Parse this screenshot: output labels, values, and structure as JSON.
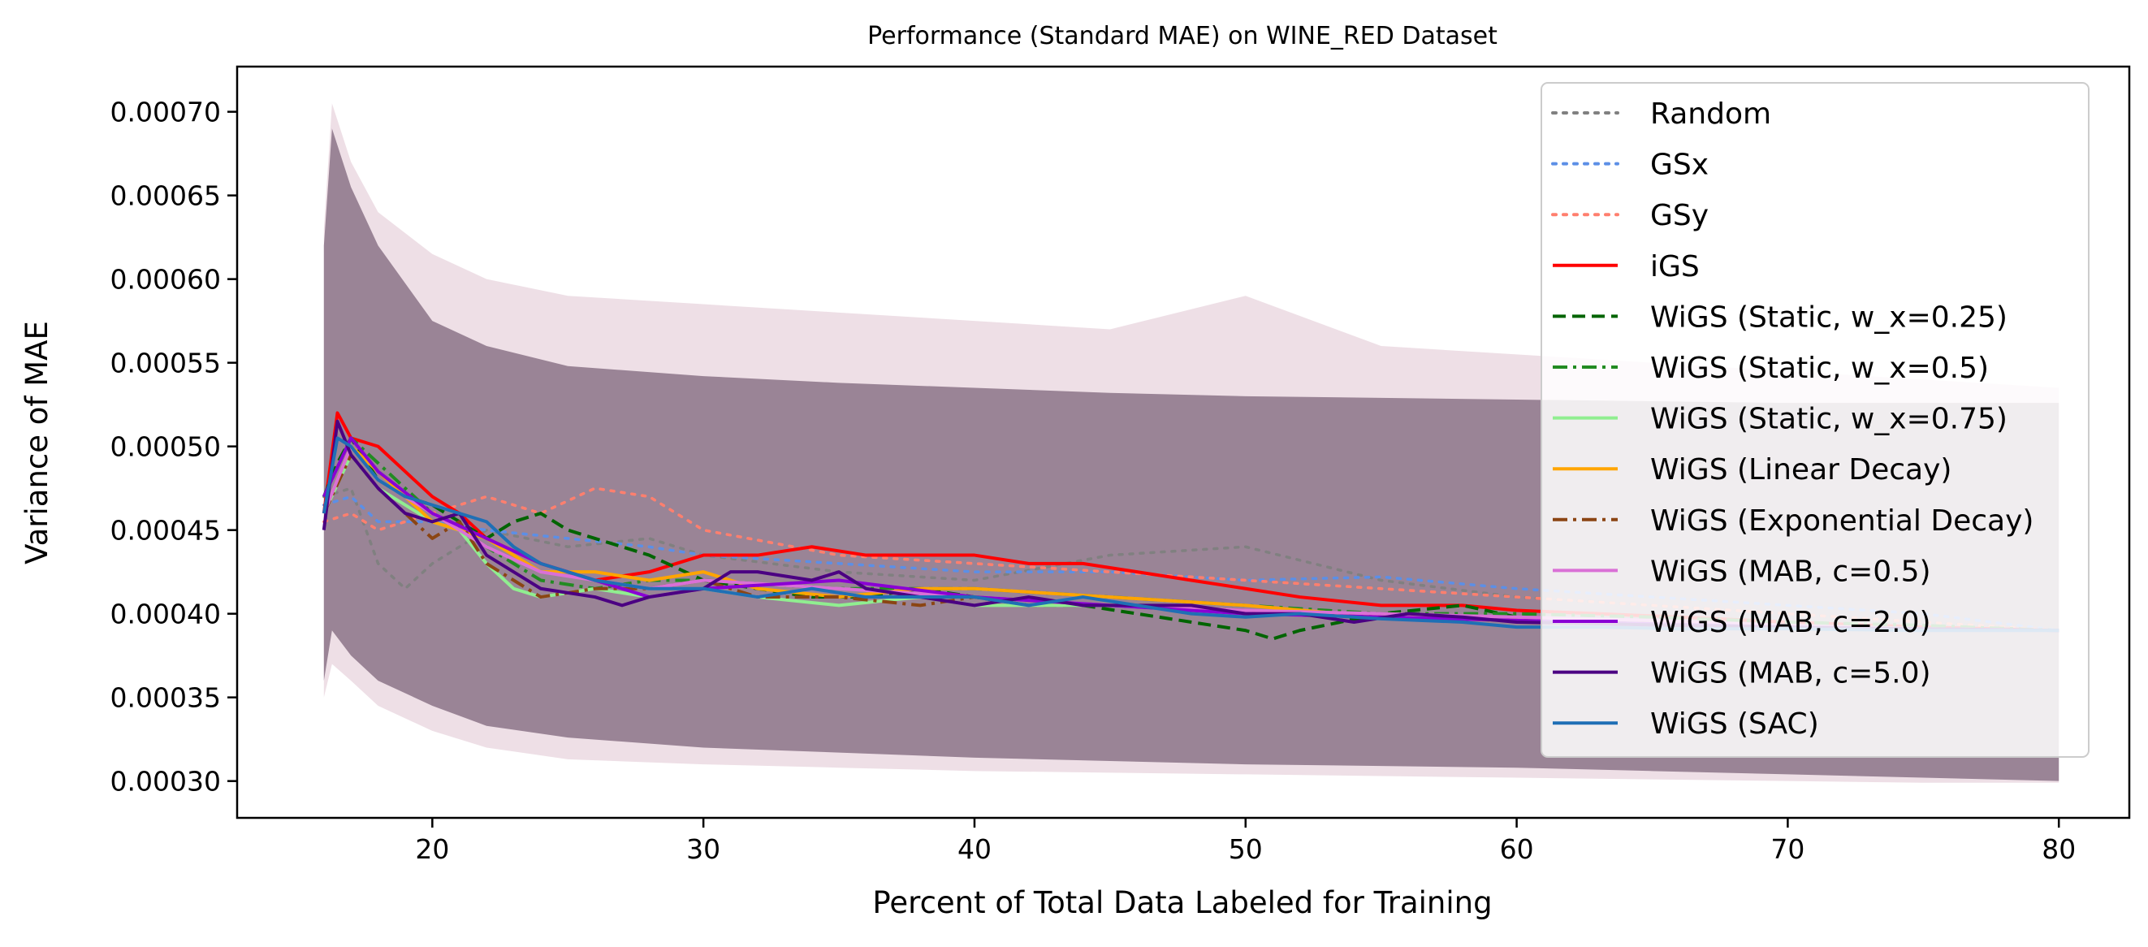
{
  "chart_data": {
    "type": "line",
    "title": "Performance (Standard MAE) on WINE_RED Dataset",
    "xlabel": "Percent of Total Data Labeled for Training",
    "ylabel": "Variance of MAE",
    "xlim": [
      12.8,
      82.6
    ],
    "ylim": [
      0.000278,
      0.000727
    ],
    "xticks": [
      20,
      30,
      40,
      50,
      60,
      70,
      80
    ],
    "yticks": [
      0.0003,
      0.00035,
      0.0004,
      0.00045,
      0.0005,
      0.00055,
      0.0006,
      0.00065,
      0.0007
    ],
    "ytick_labels": [
      "0.00030",
      "0.00035",
      "0.00040",
      "0.00045",
      "0.00050",
      "0.00055",
      "0.00060",
      "0.00065",
      "0.00070"
    ],
    "grid": false,
    "legend_position": "upper-right",
    "shaded_band": {
      "description_of_color": "shared variance band drawn in muted purple",
      "color": "#9a8496",
      "x": [
        16,
        16.3,
        17,
        18,
        20,
        22,
        25,
        30,
        35,
        40,
        45,
        50,
        55,
        60,
        65,
        70,
        75,
        80
      ],
      "upper": [
        0.00062,
        0.00069,
        0.000655,
        0.00062,
        0.000575,
        0.00056,
        0.000548,
        0.000542,
        0.000538,
        0.000535,
        0.000532,
        0.00053,
        0.000529,
        0.000528,
        0.000527,
        0.000526,
        0.000526,
        0.000526
      ],
      "lower": [
        0.00036,
        0.00039,
        0.000375,
        0.00036,
        0.000345,
        0.000333,
        0.000326,
        0.00032,
        0.000317,
        0.000314,
        0.000312,
        0.00031,
        0.000309,
        0.000308,
        0.000306,
        0.000304,
        0.000302,
        0.0003
      ],
      "outer_upper": [
        0.00063,
        0.000705,
        0.00067,
        0.00064,
        0.000615,
        0.0006,
        0.00059,
        0.000585,
        0.00058,
        0.000575,
        0.00057,
        0.00059,
        0.00056,
        0.000555,
        0.00055,
        0.000545,
        0.00054,
        0.000535
      ],
      "outer_lower": [
        0.00035,
        0.00037,
        0.00036,
        0.000345,
        0.00033,
        0.00032,
        0.000313,
        0.00031,
        0.000308,
        0.000306,
        0.000305,
        0.000304,
        0.000303,
        0.000302,
        0.000301,
        0.0003,
        0.000299,
        0.000299
      ]
    },
    "series": [
      {
        "name": "Random",
        "color": "#808080",
        "dash": "dotted",
        "x": [
          16,
          17,
          18,
          19,
          20,
          22,
          25,
          28,
          30,
          35,
          40,
          45,
          50,
          55,
          60,
          65,
          70,
          75,
          80
        ],
        "values": [
          0.00047,
          0.000475,
          0.00043,
          0.000415,
          0.00043,
          0.00045,
          0.00044,
          0.000445,
          0.000435,
          0.000425,
          0.00042,
          0.000435,
          0.00044,
          0.00042,
          0.00041,
          0.000405,
          0.0004,
          0.000395,
          0.00039
        ]
      },
      {
        "name": "GSx",
        "color": "#5c8fe6",
        "dash": "dotted",
        "x": [
          16,
          17,
          18,
          20,
          22,
          25,
          28,
          30,
          35,
          40,
          45,
          50,
          55,
          60,
          65,
          70,
          75,
          80
        ],
        "values": [
          0.000465,
          0.00047,
          0.000455,
          0.000455,
          0.00045,
          0.000445,
          0.00044,
          0.000435,
          0.00043,
          0.000425,
          0.000425,
          0.00042,
          0.000422,
          0.000415,
          0.00041,
          0.000405,
          0.0004,
          0.00039
        ]
      },
      {
        "name": "GSy",
        "color": "#ff7f6e",
        "dash": "dotted",
        "x": [
          16,
          17,
          18,
          20,
          22,
          24,
          26,
          28,
          30,
          35,
          40,
          45,
          50,
          55,
          60,
          65,
          70,
          75,
          80
        ],
        "values": [
          0.000455,
          0.00046,
          0.00045,
          0.00046,
          0.00047,
          0.00046,
          0.000475,
          0.00047,
          0.00045,
          0.000435,
          0.00043,
          0.000425,
          0.00042,
          0.000415,
          0.00041,
          0.000405,
          0.0004,
          0.000395,
          0.00039
        ]
      },
      {
        "name": "iGS",
        "color": "#ff0000",
        "dash": "solid",
        "x": [
          16,
          16.5,
          17,
          18,
          19,
          20,
          21,
          22,
          24,
          26,
          28,
          30,
          32,
          34,
          36,
          38,
          40,
          42,
          44,
          46,
          48,
          50,
          52,
          55,
          58,
          60,
          63,
          66,
          70,
          75,
          80
        ],
        "values": [
          0.00046,
          0.00052,
          0.000505,
          0.0005,
          0.000485,
          0.00047,
          0.00046,
          0.000445,
          0.00043,
          0.00042,
          0.000425,
          0.000435,
          0.000435,
          0.00044,
          0.000435,
          0.000435,
          0.000435,
          0.00043,
          0.00043,
          0.000425,
          0.00042,
          0.000415,
          0.00041,
          0.000405,
          0.000405,
          0.000402,
          0.0004,
          0.000398,
          0.000395,
          0.000392,
          0.00039
        ]
      },
      {
        "name": "WiGS (Static, w_x=0.25)",
        "color": "#006400",
        "dash": "dashed",
        "x": [
          16,
          16.5,
          17,
          18,
          19,
          20,
          21,
          22,
          23,
          24,
          25,
          26,
          28,
          30,
          32,
          34,
          36,
          38,
          40,
          42,
          44,
          46,
          48,
          50,
          51,
          52,
          55,
          58,
          60,
          63,
          66,
          70,
          75,
          80
        ],
        "values": [
          0.00047,
          0.00049,
          0.000505,
          0.00048,
          0.00047,
          0.000465,
          0.000455,
          0.000445,
          0.000455,
          0.00046,
          0.00045,
          0.000445,
          0.000435,
          0.00042,
          0.000415,
          0.00041,
          0.00041,
          0.000415,
          0.00041,
          0.000405,
          0.000405,
          0.0004,
          0.000395,
          0.00039,
          0.000385,
          0.00039,
          0.0004,
          0.000405,
          0.000398,
          0.000396,
          0.000394,
          0.000393,
          0.000391,
          0.00039
        ]
      },
      {
        "name": "WiGS (Static, w_x=0.5)",
        "color": "#228b22",
        "dash": "dashdot",
        "x": [
          16,
          17,
          18,
          20,
          22,
          24,
          26,
          28,
          30,
          35,
          40,
          45,
          50,
          55,
          60,
          65,
          70,
          75,
          80
        ],
        "values": [
          0.00047,
          0.000505,
          0.00049,
          0.00046,
          0.00044,
          0.00042,
          0.000415,
          0.00042,
          0.00042,
          0.000415,
          0.000415,
          0.00041,
          0.000405,
          0.0004,
          0.0004,
          0.000398,
          0.000395,
          0.000393,
          0.00039
        ]
      },
      {
        "name": "WiGS (Static, w_x=0.75)",
        "color": "#90ee90",
        "dash": "solid",
        "x": [
          16,
          17,
          18,
          20,
          21,
          22,
          23,
          24,
          26,
          28,
          30,
          32,
          35,
          38,
          40,
          45,
          50,
          55,
          60,
          65,
          70,
          75,
          80
        ],
        "values": [
          0.00046,
          0.000495,
          0.000475,
          0.000455,
          0.00045,
          0.00043,
          0.000415,
          0.00041,
          0.000415,
          0.00041,
          0.000415,
          0.00041,
          0.000405,
          0.00041,
          0.000405,
          0.000405,
          0.0004,
          0.000398,
          0.000397,
          0.000395,
          0.000393,
          0.000391,
          0.00039
        ]
      },
      {
        "name": "WiGS (Linear Decay)",
        "color": "#ffa500",
        "dash": "solid",
        "x": [
          16,
          17,
          18,
          20,
          22,
          24,
          26,
          28,
          30,
          32,
          35,
          38,
          40,
          45,
          50,
          55,
          60,
          65,
          70,
          75,
          80
        ],
        "values": [
          0.00046,
          0.0005,
          0.000485,
          0.000455,
          0.000445,
          0.000425,
          0.000425,
          0.00042,
          0.000425,
          0.000415,
          0.00041,
          0.000415,
          0.000415,
          0.00041,
          0.000405,
          0.000398,
          0.000396,
          0.000394,
          0.000392,
          0.000391,
          0.00039
        ]
      },
      {
        "name": "WiGS (Exponential Decay)",
        "color": "#8b4513",
        "dash": "dashdot",
        "x": [
          16,
          17,
          18,
          20,
          21,
          22,
          24,
          26,
          28,
          30,
          32,
          35,
          38,
          40,
          45,
          50,
          55,
          60,
          65,
          70,
          75,
          80
        ],
        "values": [
          0.00046,
          0.000495,
          0.000475,
          0.000445,
          0.000455,
          0.00043,
          0.00041,
          0.000415,
          0.000415,
          0.00042,
          0.00041,
          0.00041,
          0.000405,
          0.00041,
          0.000405,
          0.000402,
          0.000398,
          0.000396,
          0.000394,
          0.000392,
          0.000391,
          0.00039
        ]
      },
      {
        "name": "WiGS (MAB, c=0.5)",
        "color": "#da70d6",
        "dash": "solid",
        "x": [
          16,
          17,
          18,
          20,
          22,
          24,
          26,
          28,
          30,
          35,
          40,
          45,
          50,
          55,
          60,
          65,
          70,
          75,
          80
        ],
        "values": [
          0.00046,
          0.0005,
          0.00048,
          0.00046,
          0.00044,
          0.000425,
          0.00042,
          0.000415,
          0.00042,
          0.000415,
          0.00041,
          0.000405,
          0.000402,
          0.0004,
          0.000398,
          0.000396,
          0.000393,
          0.000391,
          0.00039
        ]
      },
      {
        "name": "WiGS (MAB, c=2.0)",
        "color": "#8a00d4",
        "dash": "solid",
        "x": [
          16,
          17,
          18,
          20,
          22,
          24,
          26,
          28,
          30,
          35,
          40,
          45,
          50,
          55,
          60,
          65,
          70,
          75,
          80
        ],
        "values": [
          0.00047,
          0.000505,
          0.000485,
          0.00046,
          0.000445,
          0.00043,
          0.00042,
          0.00041,
          0.000415,
          0.00042,
          0.00041,
          0.000405,
          0.0004,
          0.000398,
          0.000396,
          0.000394,
          0.000392,
          0.000391,
          0.00039
        ]
      },
      {
        "name": "WiGS (MAB, c=5.0)",
        "color": "#4b0082",
        "dash": "solid",
        "x": [
          16,
          16.5,
          17,
          18,
          19,
          20,
          21,
          22,
          24,
          26,
          27,
          28,
          30,
          31,
          32,
          34,
          35,
          36,
          38,
          40,
          42,
          44,
          46,
          48,
          50,
          52,
          54,
          56,
          58,
          60,
          63,
          66,
          70,
          75,
          80
        ],
        "values": [
          0.00045,
          0.000515,
          0.000495,
          0.000475,
          0.00046,
          0.000455,
          0.00046,
          0.000435,
          0.000415,
          0.00041,
          0.000405,
          0.00041,
          0.000415,
          0.000425,
          0.000425,
          0.00042,
          0.000425,
          0.000415,
          0.00041,
          0.000405,
          0.00041,
          0.000405,
          0.000405,
          0.000405,
          0.0004,
          0.0004,
          0.000395,
          0.0004,
          0.000398,
          0.000395,
          0.000394,
          0.000393,
          0.000392,
          0.000391,
          0.00039
        ]
      },
      {
        "name": "WiGS (SAC)",
        "color": "#1f6fb5",
        "dash": "solid",
        "x": [
          16,
          16.5,
          17,
          18,
          19,
          20,
          21,
          22,
          23,
          24,
          26,
          28,
          30,
          32,
          34,
          36,
          38,
          40,
          42,
          44,
          46,
          48,
          50,
          52,
          55,
          58,
          60,
          63,
          66,
          70,
          75,
          80
        ],
        "values": [
          0.00046,
          0.000505,
          0.0005,
          0.00048,
          0.00047,
          0.000465,
          0.00046,
          0.000455,
          0.00044,
          0.00043,
          0.00042,
          0.000415,
          0.000415,
          0.00041,
          0.000415,
          0.00041,
          0.00041,
          0.00041,
          0.000405,
          0.00041,
          0.000405,
          0.0004,
          0.000398,
          0.0004,
          0.000397,
          0.000395,
          0.000392,
          0.000392,
          0.000391,
          0.000391,
          0.00039,
          0.00039
        ]
      }
    ]
  }
}
